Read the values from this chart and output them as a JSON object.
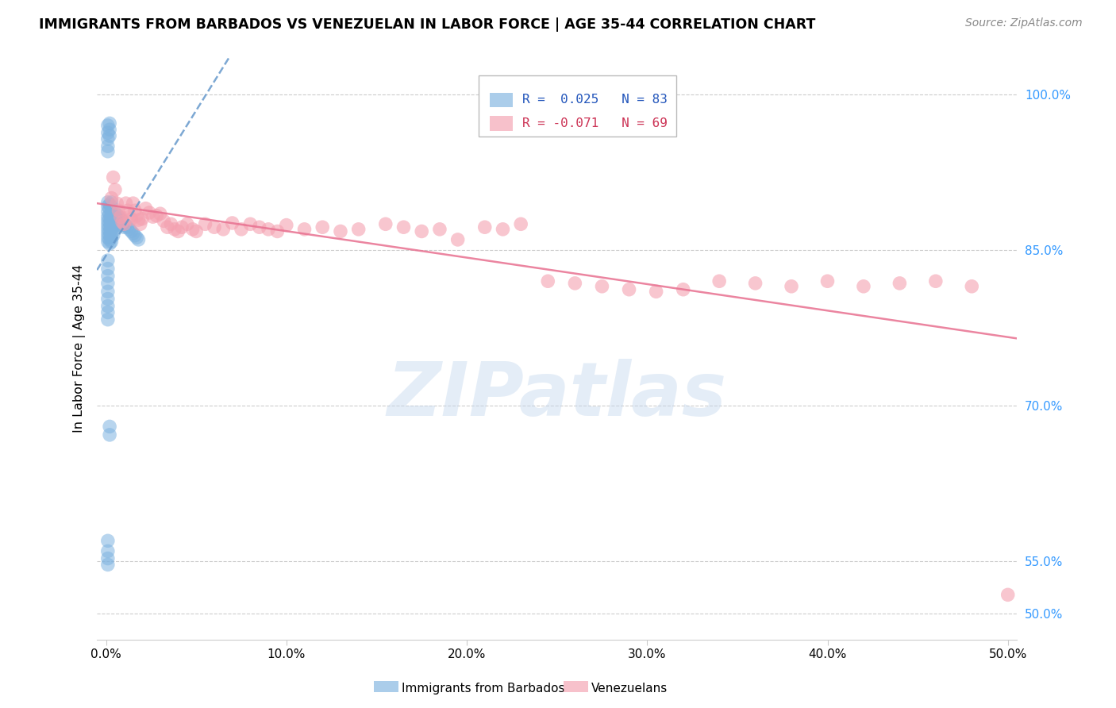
{
  "title": "IMMIGRANTS FROM BARBADOS VS VENEZUELAN IN LABOR FORCE | AGE 35-44 CORRELATION CHART",
  "source": "Source: ZipAtlas.com",
  "ylabel": "In Labor Force | Age 35-44",
  "ytick_labels": [
    "50.0%",
    "55.0%",
    "70.0%",
    "85.0%",
    "100.0%"
  ],
  "ytick_values": [
    0.5,
    0.55,
    0.7,
    0.85,
    1.0
  ],
  "xtick_labels": [
    "0.0%",
    "10.0%",
    "20.0%",
    "30.0%",
    "40.0%",
    "50.0%"
  ],
  "xtick_values": [
    0.0,
    0.1,
    0.2,
    0.3,
    0.4,
    0.5
  ],
  "xlim": [
    -0.005,
    0.505
  ],
  "ylim": [
    0.475,
    1.035
  ],
  "watermark": "ZIPatlas",
  "blue_color": "#7EB3E0",
  "pink_color": "#F4A0B0",
  "blue_trend_color": "#6699CC",
  "pink_trend_color": "#E87090",
  "blue_marker_color": "#5B9BD5",
  "pink_marker_color": "#F08080",
  "barbados_x": [
    0.001,
    0.001,
    0.001,
    0.001,
    0.001,
    0.001,
    0.001,
    0.001,
    0.001,
    0.001,
    0.002,
    0.002,
    0.002,
    0.002,
    0.002,
    0.002,
    0.002,
    0.002,
    0.002,
    0.002,
    0.003,
    0.003,
    0.003,
    0.003,
    0.003,
    0.003,
    0.003,
    0.003,
    0.003,
    0.003,
    0.004,
    0.004,
    0.004,
    0.004,
    0.004,
    0.004,
    0.005,
    0.005,
    0.005,
    0.005,
    0.006,
    0.006,
    0.006,
    0.007,
    0.007,
    0.007,
    0.008,
    0.008,
    0.009,
    0.009,
    0.01,
    0.01,
    0.011,
    0.012,
    0.013,
    0.014,
    0.015,
    0.016,
    0.017,
    0.018,
    0.001,
    0.001,
    0.001,
    0.001,
    0.001,
    0.002,
    0.002,
    0.002,
    0.001,
    0.001,
    0.001,
    0.001,
    0.001,
    0.001,
    0.001,
    0.001,
    0.001,
    0.002,
    0.002,
    0.001,
    0.001,
    0.001,
    0.001
  ],
  "barbados_y": [
    0.887,
    0.882,
    0.878,
    0.874,
    0.87,
    0.866,
    0.862,
    0.858,
    0.892,
    0.896,
    0.884,
    0.88,
    0.876,
    0.872,
    0.868,
    0.864,
    0.86,
    0.856,
    0.89,
    0.894,
    0.886,
    0.882,
    0.878,
    0.874,
    0.87,
    0.866,
    0.862,
    0.858,
    0.892,
    0.896,
    0.884,
    0.88,
    0.876,
    0.872,
    0.868,
    0.864,
    0.886,
    0.882,
    0.878,
    0.874,
    0.884,
    0.88,
    0.876,
    0.882,
    0.878,
    0.874,
    0.88,
    0.876,
    0.878,
    0.874,
    0.876,
    0.872,
    0.874,
    0.872,
    0.87,
    0.868,
    0.866,
    0.864,
    0.862,
    0.86,
    0.97,
    0.963,
    0.957,
    0.95,
    0.945,
    0.972,
    0.966,
    0.96,
    0.84,
    0.832,
    0.825,
    0.818,
    0.81,
    0.803,
    0.796,
    0.79,
    0.783,
    0.68,
    0.672,
    0.57,
    0.56,
    0.553,
    0.547
  ],
  "venezuelan_x": [
    0.003,
    0.004,
    0.005,
    0.006,
    0.007,
    0.008,
    0.009,
    0.01,
    0.011,
    0.012,
    0.013,
    0.014,
    0.015,
    0.016,
    0.017,
    0.018,
    0.019,
    0.02,
    0.022,
    0.024,
    0.026,
    0.028,
    0.03,
    0.032,
    0.034,
    0.036,
    0.038,
    0.04,
    0.042,
    0.045,
    0.048,
    0.05,
    0.055,
    0.06,
    0.065,
    0.07,
    0.075,
    0.08,
    0.085,
    0.09,
    0.095,
    0.1,
    0.11,
    0.12,
    0.13,
    0.14,
    0.155,
    0.165,
    0.175,
    0.185,
    0.195,
    0.21,
    0.22,
    0.23,
    0.245,
    0.26,
    0.275,
    0.29,
    0.305,
    0.32,
    0.34,
    0.36,
    0.38,
    0.4,
    0.42,
    0.44,
    0.46,
    0.48,
    0.5
  ],
  "venezuelan_y": [
    0.9,
    0.92,
    0.908,
    0.895,
    0.888,
    0.882,
    0.877,
    0.875,
    0.895,
    0.888,
    0.882,
    0.88,
    0.895,
    0.888,
    0.883,
    0.879,
    0.875,
    0.88,
    0.89,
    0.886,
    0.882,
    0.883,
    0.885,
    0.878,
    0.872,
    0.875,
    0.87,
    0.868,
    0.872,
    0.875,
    0.87,
    0.868,
    0.875,
    0.872,
    0.87,
    0.876,
    0.87,
    0.875,
    0.872,
    0.87,
    0.868,
    0.874,
    0.87,
    0.872,
    0.868,
    0.87,
    0.875,
    0.872,
    0.868,
    0.87,
    0.86,
    0.872,
    0.87,
    0.875,
    0.82,
    0.818,
    0.815,
    0.812,
    0.81,
    0.812,
    0.82,
    0.818,
    0.815,
    0.82,
    0.815,
    0.818,
    0.82,
    0.815,
    0.518
  ],
  "legend_r1_label": "R =  0.025   N = 83",
  "legend_r2_label": "R = -0.071   N = 69",
  "legend_r1_color": "#2255BB",
  "legend_r2_color": "#CC3355",
  "bottom_legend_blue": "Immigrants from Barbados",
  "bottom_legend_pink": "Venezuelans"
}
